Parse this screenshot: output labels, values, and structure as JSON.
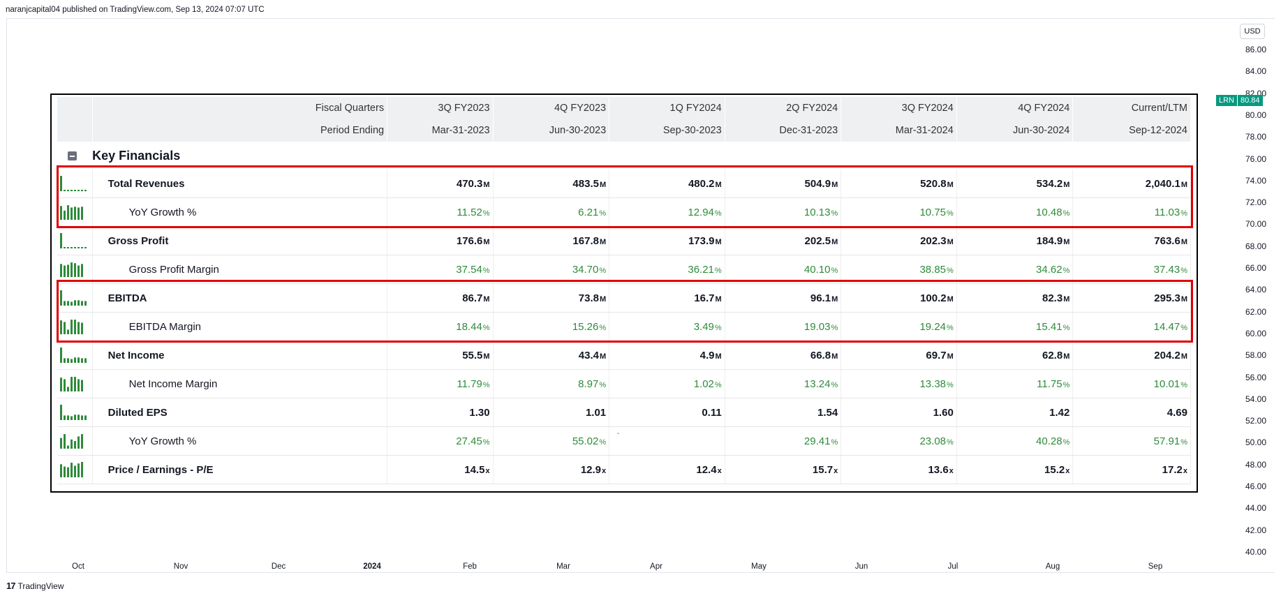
{
  "header": {
    "published_text": "naranjcapital04 published on TradingView.com, Sep 13, 2024 07:07 UTC"
  },
  "price_axis": {
    "currency": "USD",
    "ticks": [
      "86.00",
      "84.00",
      "82.00",
      "80.00",
      "78.00",
      "76.00",
      "74.00",
      "72.00",
      "70.00",
      "68.00",
      "66.00",
      "64.00",
      "62.00",
      "60.00",
      "58.00",
      "56.00",
      "54.00",
      "52.00",
      "50.00",
      "48.00",
      "46.00",
      "44.00",
      "42.00",
      "40.00"
    ],
    "current_symbol": "LRN",
    "current_price": "80.84",
    "accent_color": "#089981"
  },
  "time_axis": [
    "Oct",
    "Nov",
    "Dec",
    "2024",
    "Feb",
    "Mar",
    "Apr",
    "May",
    "Jun",
    "Jul",
    "Aug",
    "Sep"
  ],
  "brand": {
    "name": "TradingView",
    "logo_text": "17"
  },
  "table": {
    "header_row1": {
      "label": "Fiscal Quarters",
      "cols": [
        "3Q FY2023",
        "4Q FY2023",
        "1Q FY2024",
        "2Q FY2024",
        "3Q FY2024",
        "4Q FY2024",
        "Current/LTM"
      ]
    },
    "header_row2": {
      "label": "Period Ending",
      "cols": [
        "Mar-31-2023",
        "Jun-30-2023",
        "Sep-30-2023",
        "Dec-31-2023",
        "Mar-31-2024",
        "Jun-30-2024",
        "Sep-12-2024"
      ]
    },
    "section_title": "Key Financials",
    "rows": [
      {
        "label": "Total Revenues",
        "sub": false,
        "unit": "M",
        "values": [
          "470.3",
          "483.5",
          "480.2",
          "504.9",
          "520.8",
          "534.2",
          "2,040.1"
        ],
        "spark": "tall-first"
      },
      {
        "label": "YoY Growth %",
        "sub": true,
        "unit": "%",
        "values": [
          "11.52",
          "6.21",
          "12.94",
          "10.13",
          "10.75",
          "10.48",
          "11.03"
        ],
        "spark": "bars-a"
      },
      {
        "label": "Gross Profit",
        "sub": false,
        "unit": "M",
        "values": [
          "176.6",
          "167.8",
          "173.9",
          "202.5",
          "202.3",
          "184.9",
          "763.6"
        ],
        "spark": "tall-first"
      },
      {
        "label": "Gross Profit Margin",
        "sub": true,
        "unit": "%",
        "values": [
          "37.54",
          "34.70",
          "36.21",
          "40.10",
          "38.85",
          "34.62",
          "37.43"
        ],
        "spark": "bars-b"
      },
      {
        "label": "EBITDA",
        "sub": false,
        "unit": "M",
        "values": [
          "86.7",
          "73.8",
          "16.7",
          "96.1",
          "100.2",
          "82.3",
          "295.3"
        ],
        "spark": "tall-small"
      },
      {
        "label": "EBITDA Margin",
        "sub": true,
        "unit": "%",
        "values": [
          "18.44",
          "15.26",
          "3.49",
          "19.03",
          "19.24",
          "15.41",
          "14.47"
        ],
        "spark": "bars-c"
      },
      {
        "label": "Net Income",
        "sub": false,
        "unit": "M",
        "values": [
          "55.5",
          "43.4",
          "4.9",
          "66.8",
          "69.7",
          "62.8",
          "204.2"
        ],
        "spark": "tall-small"
      },
      {
        "label": "Net Income Margin",
        "sub": true,
        "unit": "%",
        "values": [
          "11.79",
          "8.97",
          "1.02",
          "13.24",
          "13.38",
          "11.75",
          "10.01"
        ],
        "spark": "bars-c"
      },
      {
        "label": "Diluted EPS",
        "sub": false,
        "unit": "",
        "values": [
          "1.30",
          "1.01",
          "0.11",
          "1.54",
          "1.60",
          "1.42",
          "4.69"
        ],
        "spark": "tall-small"
      },
      {
        "label": "YoY Growth %",
        "sub": true,
        "unit": "%",
        "values": [
          "27.45",
          "55.02",
          "",
          "29.41",
          "23.08",
          "40.28",
          "57.91"
        ],
        "spark": "bars-d"
      },
      {
        "label": "Price / Earnings - P/E",
        "sub": false,
        "unit": "x",
        "values": [
          "14.5",
          "12.9",
          "12.4",
          "15.7",
          "13.6",
          "15.2",
          "17.2"
        ],
        "spark": "bars-e"
      }
    ],
    "blank_dash": "-",
    "positive_color": "#2e8b3a",
    "highlight_color": "#e00000"
  }
}
